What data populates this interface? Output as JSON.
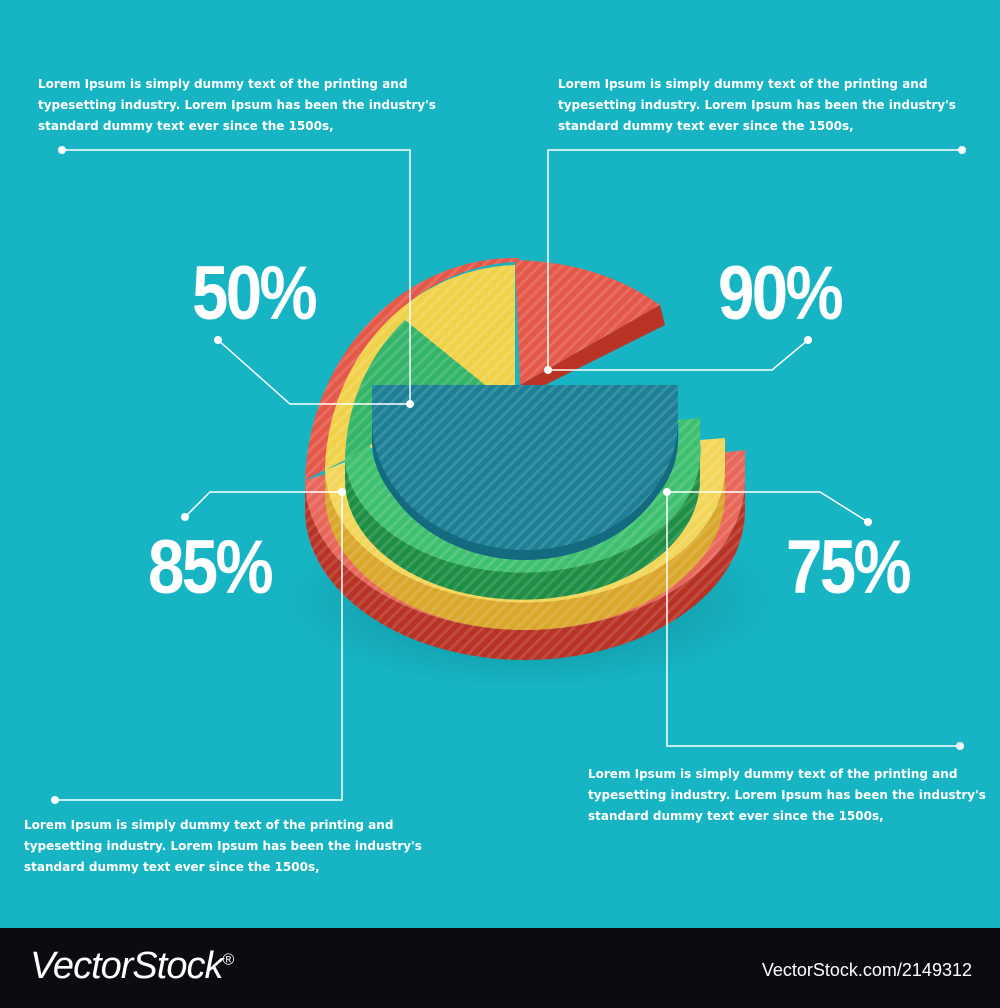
{
  "chart_data": {
    "type": "pie",
    "title": "",
    "labels": [
      "50%",
      "90%",
      "85%",
      "75%"
    ],
    "values": [
      50,
      90,
      85,
      75
    ],
    "colors": [
      "#f0d24a",
      "#e4584a",
      "#3ab86a",
      "#1c7f95"
    ],
    "style": "3d stacked semicircle rings",
    "grid": false,
    "legend": "none",
    "annotations": {
      "top_left": "Lorem Ipsum is simply dummy text of the printing and typesetting industry. Lorem Ipsum has been the industry's standard dummy text ever since the 1500s,",
      "top_right": "Lorem Ipsum is simply dummy text of the printing and typesetting industry. Lorem Ipsum has been the industry's standard dummy text ever since the 1500s,",
      "bottom_left": "Lorem Ipsum is simply dummy text of the printing and typesetting industry. Lorem Ipsum has been the industry's standard dummy text ever since the 1500s,",
      "bottom_right": "Lorem Ipsum is simply dummy text of the printing and typesetting industry. Lorem Ipsum has been the industry's standard dummy text ever since the 1500s,"
    }
  },
  "palette": {
    "background": "#17b5c4",
    "red": "#e4584a",
    "yellow": "#f0d24a",
    "green": "#3ab86a",
    "teal": "#1c7f95",
    "footer": "#0b0b12"
  },
  "footer": {
    "brand": "VectorStock",
    "brand_mark": "®",
    "stock_id": "VectorStock.com/2149312"
  }
}
